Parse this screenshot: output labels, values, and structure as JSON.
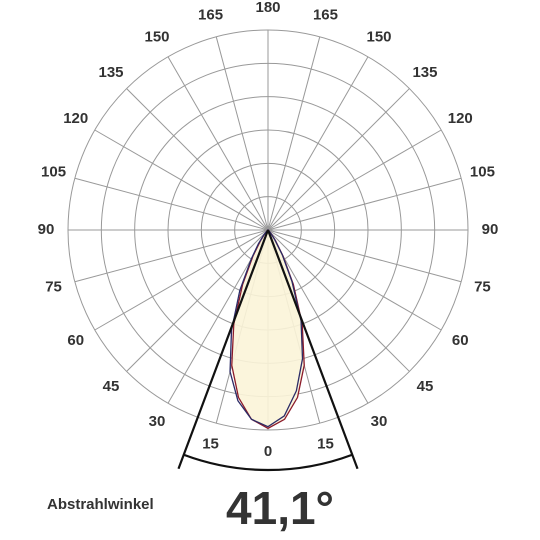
{
  "chart_data": {
    "type": "polar",
    "angle_ticks": [
      0,
      15,
      30,
      45,
      60,
      75,
      90,
      105,
      120,
      135,
      150,
      165,
      180
    ],
    "rlim": [
      0,
      6
    ],
    "rticks": [
      1,
      2,
      3,
      4,
      5,
      6
    ],
    "angles": [
      -90,
      -45,
      -40,
      -35,
      -30,
      -25,
      -20,
      -15,
      -10,
      -5,
      0,
      5,
      10,
      15,
      20,
      25,
      30,
      35,
      40,
      45,
      90
    ],
    "series": [
      {
        "color": "#8b1a2a",
        "fill": "#fbf4d8",
        "values": [
          0,
          0.05,
          0.15,
          0.4,
          0.9,
          1.8,
          3.0,
          4.2,
          5.1,
          5.7,
          5.95,
          5.7,
          5.1,
          4.2,
          3.0,
          1.8,
          0.9,
          0.4,
          0.15,
          0.05,
          0
        ]
      },
      {
        "color": "#2b2b66",
        "values": [
          0,
          0.05,
          0.2,
          0.5,
          1.0,
          2.0,
          3.2,
          4.4,
          5.2,
          5.7,
          5.9,
          5.6,
          4.9,
          4.0,
          2.9,
          1.7,
          0.85,
          0.35,
          0.12,
          0.04,
          0
        ]
      }
    ],
    "annotation": {
      "label": "Abstrahlwinkel",
      "value": 41.1,
      "value_label": "41,1°"
    }
  }
}
